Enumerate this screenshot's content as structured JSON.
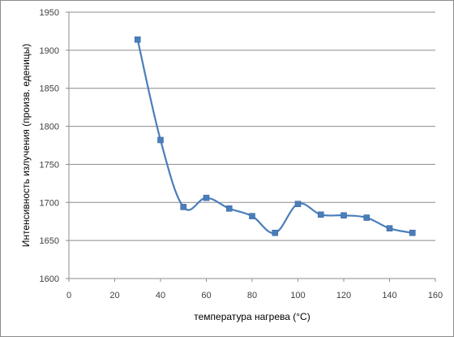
{
  "chart_data": {
    "type": "line",
    "smoothed": true,
    "marker": "square",
    "title": "",
    "xlabel": "температура нагрева (°C)",
    "ylabel": "Интенсивность излучения (произв. еденицы)",
    "xlim": [
      0,
      160
    ],
    "ylim": [
      1600,
      1950
    ],
    "xticks": [
      0,
      20,
      40,
      60,
      80,
      100,
      120,
      140,
      160
    ],
    "yticks": [
      1600,
      1650,
      1700,
      1750,
      1800,
      1850,
      1900,
      1950
    ],
    "grid": "horizontal",
    "legend": "none",
    "series": [
      {
        "x": [
          30,
          40,
          50,
          60,
          70,
          80,
          90,
          100,
          110,
          120,
          130,
          140,
          150
        ],
        "y": [
          1914,
          1782,
          1694,
          1706,
          1692,
          1682,
          1660,
          1698,
          1684,
          1683,
          1680,
          1666,
          1660
        ],
        "color": "#4a7ebb"
      }
    ]
  }
}
